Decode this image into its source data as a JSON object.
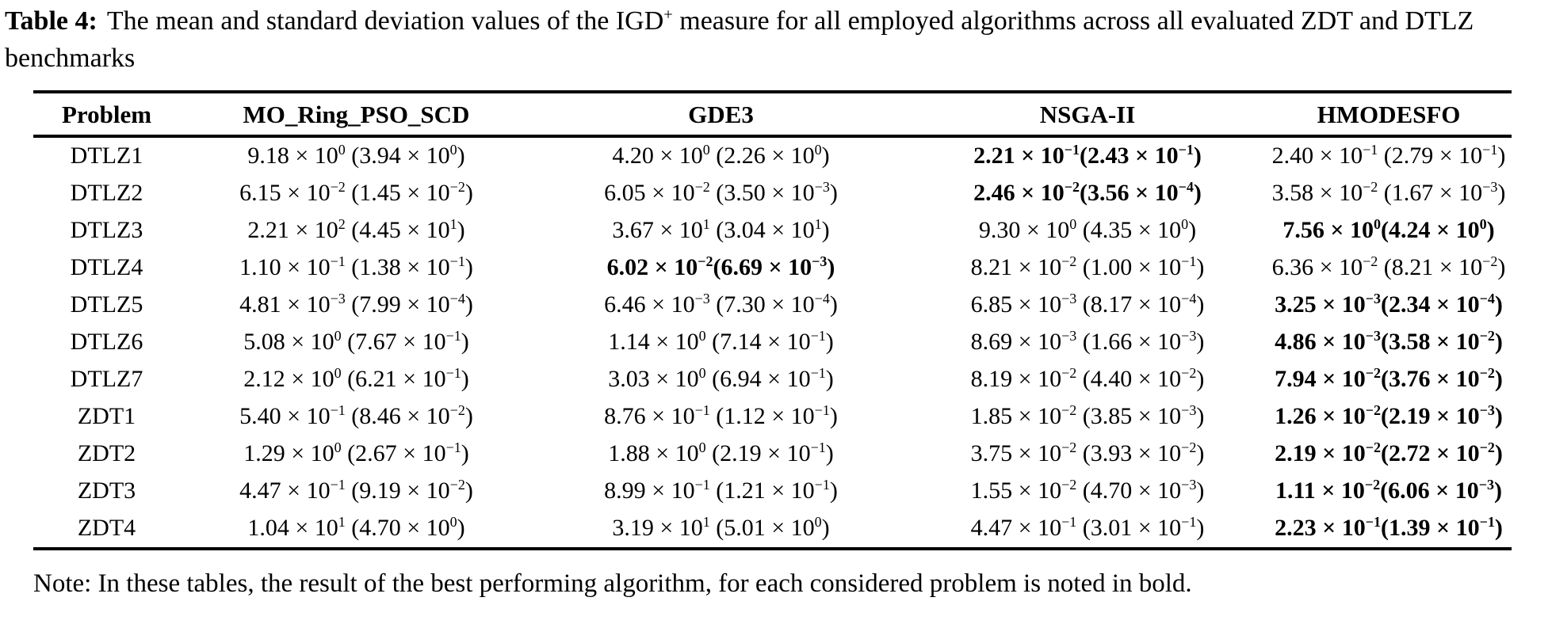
{
  "caption": {
    "label": "Table 4:",
    "text": "The mean and standard deviation values of the IGD^{+} measure for all employed algorithms across all evaluated ZDT and DTLZ benchmarks"
  },
  "table": {
    "columns": [
      "Problem",
      "MO_Ring_PSO_SCD",
      "GDE3",
      "NSGA-II",
      "HMODESFO"
    ],
    "rows": [
      {
        "problem": "DTLZ1",
        "cells": [
          {
            "text": "9.18 × 10^{0} (3.94 × 10^{0})",
            "bold": false
          },
          {
            "text": "4.20 × 10^{0} (2.26 × 10^{0})",
            "bold": false
          },
          {
            "text": "2.21 × 10^{−1}(2.43 × 10^{−1})",
            "bold": true
          },
          {
            "text": "2.40 × 10^{−1} (2.79 × 10^{−1})",
            "bold": false
          }
        ]
      },
      {
        "problem": "DTLZ2",
        "cells": [
          {
            "text": "6.15 × 10^{−2} (1.45 × 10^{−2})",
            "bold": false
          },
          {
            "text": "6.05 × 10^{−2} (3.50 × 10^{−3})",
            "bold": false
          },
          {
            "text": "2.46 × 10^{−2}(3.56 × 10^{−4})",
            "bold": true
          },
          {
            "text": "3.58 × 10^{−2} (1.67 × 10^{−3})",
            "bold": false
          }
        ]
      },
      {
        "problem": "DTLZ3",
        "cells": [
          {
            "text": "2.21 × 10^{2} (4.45 × 10^{1})",
            "bold": false
          },
          {
            "text": "3.67 × 10^{1} (3.04 × 10^{1})",
            "bold": false
          },
          {
            "text": "9.30 × 10^{0} (4.35 × 10^{0})",
            "bold": false
          },
          {
            "text": "7.56 × 10^{0}(4.24 × 10^{0})",
            "bold": true
          }
        ]
      },
      {
        "problem": "DTLZ4",
        "cells": [
          {
            "text": "1.10 × 10^{−1} (1.38 × 10^{−1})",
            "bold": false
          },
          {
            "text": "6.02 × 10^{−2}(6.69 × 10^{−3})",
            "bold": true
          },
          {
            "text": "8.21 × 10^{−2} (1.00 × 10^{−1})",
            "bold": false
          },
          {
            "text": "6.36 × 10^{−2} (8.21 × 10^{−2})",
            "bold": false
          }
        ]
      },
      {
        "problem": "DTLZ5",
        "cells": [
          {
            "text": "4.81 × 10^{−3} (7.99 × 10^{−4})",
            "bold": false
          },
          {
            "text": "6.46 × 10^{−3} (7.30 × 10^{−4})",
            "bold": false
          },
          {
            "text": "6.85 × 10^{−3} (8.17 × 10^{−4})",
            "bold": false
          },
          {
            "text": "3.25 × 10^{−3}(2.34 × 10^{−4})",
            "bold": true
          }
        ]
      },
      {
        "problem": "DTLZ6",
        "cells": [
          {
            "text": "5.08 × 10^{0} (7.67 × 10^{−1})",
            "bold": false
          },
          {
            "text": "1.14 × 10^{0} (7.14 × 10^{−1})",
            "bold": false
          },
          {
            "text": "8.69 × 10^{−3} (1.66 × 10^{−3})",
            "bold": false
          },
          {
            "text": "4.86 × 10^{−3}(3.58 × 10^{−2})",
            "bold": true
          }
        ]
      },
      {
        "problem": "DTLZ7",
        "cells": [
          {
            "text": "2.12 × 10^{0} (6.21 × 10^{−1})",
            "bold": false
          },
          {
            "text": "3.03 × 10^{0} (6.94 × 10^{−1})",
            "bold": false
          },
          {
            "text": "8.19 × 10^{−2} (4.40 × 10^{−2})",
            "bold": false
          },
          {
            "text": "7.94 × 10^{−2}(3.76 × 10^{−2})",
            "bold": true
          }
        ]
      },
      {
        "problem": "ZDT1",
        "cells": [
          {
            "text": "5.40 × 10^{−1} (8.46 × 10^{−2})",
            "bold": false
          },
          {
            "text": "8.76 × 10^{−1} (1.12 × 10^{−1})",
            "bold": false
          },
          {
            "text": "1.85 × 10^{−2} (3.85 × 10^{−3})",
            "bold": false
          },
          {
            "text": "1.26 × 10^{−2}(2.19 × 10^{−3})",
            "bold": true
          }
        ]
      },
      {
        "problem": "ZDT2",
        "cells": [
          {
            "text": "1.29 × 10^{0} (2.67 × 10^{−1})",
            "bold": false
          },
          {
            "text": "1.88 × 10^{0} (2.19 × 10^{−1})",
            "bold": false
          },
          {
            "text": "3.75 × 10^{−2} (3.93 × 10^{−2})",
            "bold": false
          },
          {
            "text": "2.19 × 10^{−2}(2.72 × 10^{−2})",
            "bold": true
          }
        ]
      },
      {
        "problem": "ZDT3",
        "cells": [
          {
            "text": "4.47 × 10^{−1} (9.19 × 10^{−2})",
            "bold": false
          },
          {
            "text": "8.99 × 10^{−1} (1.21 × 10^{−1})",
            "bold": false
          },
          {
            "text": "1.55 × 10^{−2} (4.70 × 10^{−3})",
            "bold": false
          },
          {
            "text": "1.11 × 10^{−2}(6.06 × 10^{−3})",
            "bold": true
          }
        ]
      },
      {
        "problem": "ZDT4",
        "cells": [
          {
            "text": "1.04 × 10^{1} (4.70 × 10^{0})",
            "bold": false
          },
          {
            "text": "3.19 × 10^{1} (5.01 × 10^{0})",
            "bold": false
          },
          {
            "text": "4.47 × 10^{−1} (3.01 × 10^{−1})",
            "bold": false
          },
          {
            "text": "2.23 × 10^{−1}(1.39 × 10^{−1})",
            "bold": true
          }
        ]
      }
    ]
  },
  "note": "Note: In these tables, the result of the best performing algorithm, for each considered problem is noted in bold."
}
